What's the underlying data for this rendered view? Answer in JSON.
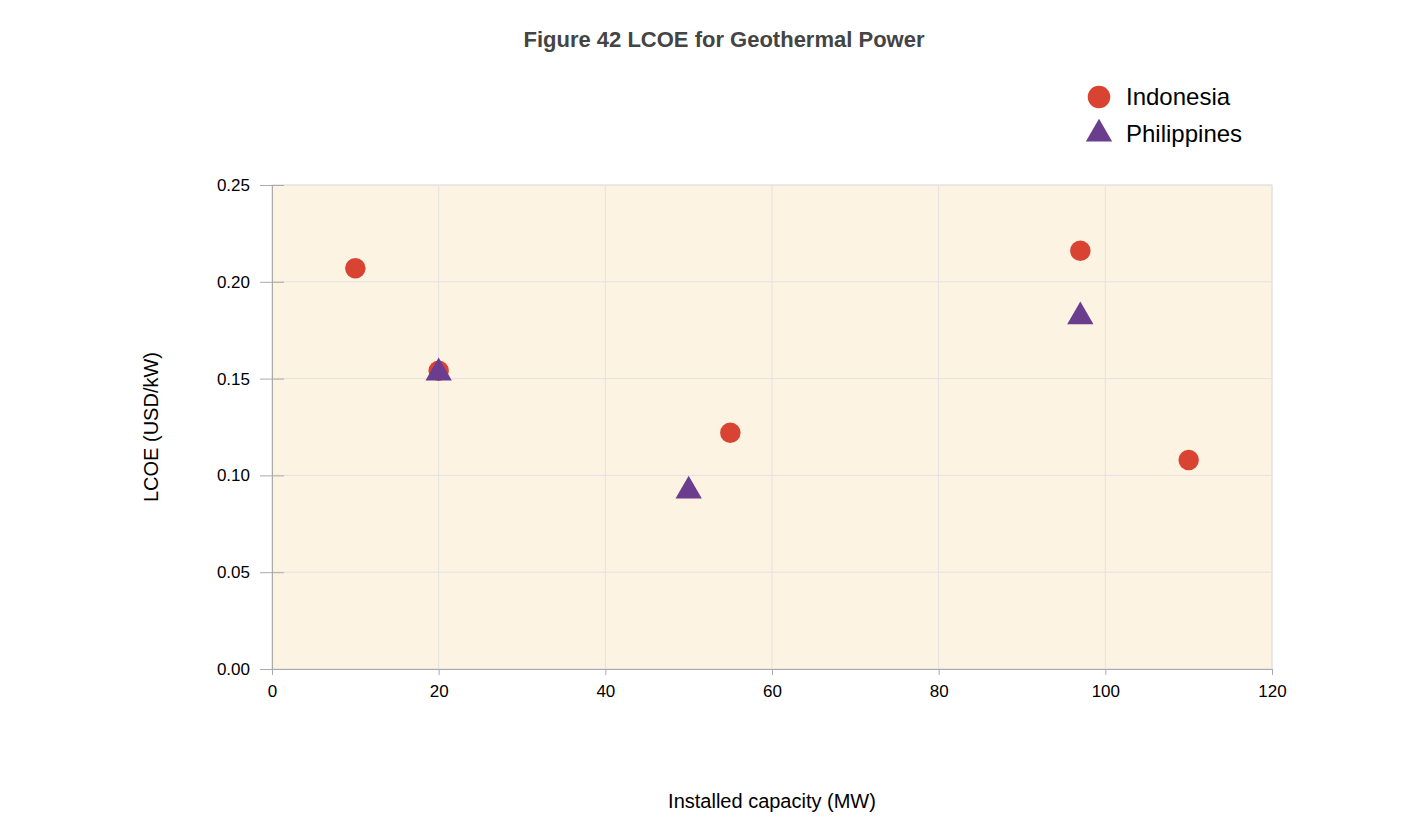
{
  "chart_data": {
    "type": "scatter",
    "title": "Figure 42 LCOE for Geothermal Power",
    "x_label": "Installed capacity (MW)",
    "y_label": "LCOE (USD/kW)",
    "xlim": [
      0,
      120
    ],
    "xticks": [
      0,
      20,
      40,
      60,
      80,
      100,
      120
    ],
    "ylim": [
      0,
      0.25
    ],
    "yticks": [
      {
        "value": 0,
        "label": "0.00"
      },
      0.05,
      {
        "value": 0.1,
        "label": "0.10"
      },
      0.15,
      {
        "value": 0.2,
        "label": "0.20"
      },
      0.25
    ],
    "grid": true,
    "legend": "top-right",
    "series": [
      {
        "name": "Indonesia",
        "color": "#d94432",
        "marker": "circle",
        "x": [
          10,
          20,
          55,
          97,
          110
        ],
        "values": [
          0.207,
          0.154,
          0.122,
          0.216,
          0.108
        ]
      },
      {
        "name": "Philippines",
        "color": "#6a3d8f",
        "marker": "triangle",
        "x": [
          20,
          50,
          97
        ],
        "values": [
          0.153,
          0.092,
          0.182
        ]
      }
    ]
  }
}
